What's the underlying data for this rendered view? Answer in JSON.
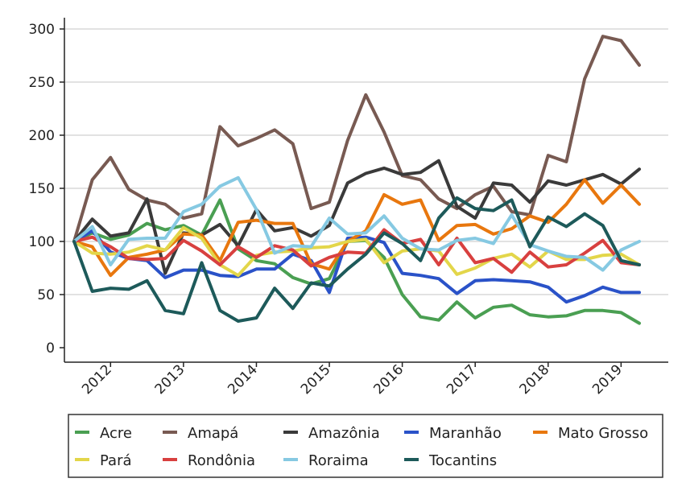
{
  "chart_data": {
    "type": "line",
    "title": "",
    "xlabel": "",
    "ylabel": "",
    "ylim": [
      0,
      300
    ],
    "yticks": [
      0,
      50,
      100,
      150,
      200,
      250,
      300
    ],
    "xlim": [
      2011.5,
      2019.33
    ],
    "xticks": [
      2012,
      2013,
      2014,
      2015,
      2016,
      2017,
      2018,
      2019
    ],
    "xtick_labels": [
      "2012",
      "2013",
      "2014",
      "2015",
      "2016",
      "2017",
      "2018",
      "2019"
    ],
    "grid": "horizontal",
    "legend_position": "bottom",
    "x": [
      2011.5,
      2011.75,
      2012.0,
      2012.25,
      2012.5,
      2012.75,
      2013.0,
      2013.25,
      2013.5,
      2013.75,
      2014.0,
      2014.25,
      2014.5,
      2014.75,
      2015.0,
      2015.25,
      2015.5,
      2015.75,
      2016.0,
      2016.25,
      2016.5,
      2016.75,
      2017.0,
      2017.25,
      2017.5,
      2017.75,
      2018.0,
      2018.25,
      2018.5,
      2018.75,
      2019.0,
      2019.25
    ],
    "series": [
      {
        "name": "Acre",
        "color": "#4a9f52",
        "values": [
          100,
          108,
          102,
          106,
          117,
          111,
          115,
          106,
          139,
          93,
          82,
          79,
          66,
          60,
          65,
          100,
          101,
          85,
          50,
          29,
          26,
          43,
          28,
          38,
          40,
          31,
          29,
          30,
          35,
          35,
          33,
          23
        ]
      },
      {
        "name": "Amapá",
        "color": "#785a52",
        "values": [
          100,
          158,
          179,
          149,
          139,
          135,
          122,
          126,
          208,
          190,
          197,
          205,
          192,
          131,
          137,
          195,
          238,
          203,
          162,
          158,
          140,
          131,
          144,
          152,
          128,
          125,
          181,
          175,
          253,
          293,
          289,
          266
        ]
      },
      {
        "name": "Amazônia",
        "color": "#3a3a3a",
        "values": [
          100,
          121,
          105,
          108,
          140,
          70,
          108,
          106,
          116,
          96,
          130,
          110,
          113,
          105,
          115,
          155,
          164,
          169,
          163,
          165,
          176,
          133,
          122,
          155,
          153,
          137,
          157,
          153,
          158,
          163,
          154,
          168
        ]
      },
      {
        "name": "Maranhão",
        "color": "#2a52c8",
        "values": [
          100,
          110,
          90,
          84,
          82,
          66,
          73,
          73,
          68,
          67,
          74,
          74,
          88,
          82,
          52,
          103,
          104,
          99,
          70,
          68,
          65,
          51,
          63,
          64,
          63,
          62,
          57,
          43,
          49,
          57,
          52,
          52
        ]
      },
      {
        "name": "Mato Grosso",
        "color": "#e8770e",
        "values": [
          100,
          95,
          68,
          85,
          88,
          92,
          107,
          106,
          82,
          118,
          120,
          117,
          117,
          79,
          74,
          100,
          110,
          144,
          135,
          139,
          101,
          115,
          116,
          107,
          112,
          124,
          118,
          135,
          158,
          136,
          153,
          135
        ]
      },
      {
        "name": "Pará",
        "color": "#e3d64a",
        "values": [
          100,
          89,
          88,
          90,
          96,
          92,
          113,
          103,
          78,
          68,
          87,
          90,
          91,
          94,
          95,
          100,
          102,
          80,
          91,
          93,
          91,
          69,
          75,
          84,
          88,
          76,
          91,
          83,
          83,
          87,
          88,
          78
        ]
      },
      {
        "name": "Rondônia",
        "color": "#d8403f",
        "values": [
          100,
          104,
          95,
          84,
          83,
          84,
          101,
          91,
          78,
          95,
          85,
          96,
          92,
          77,
          85,
          90,
          89,
          111,
          98,
          102,
          78,
          103,
          80,
          84,
          71,
          90,
          76,
          78,
          89,
          101,
          80,
          78
        ]
      },
      {
        "name": "Roraima",
        "color": "#86c9e2",
        "values": [
          100,
          114,
          78,
          102,
          103,
          103,
          128,
          135,
          152,
          160,
          130,
          89,
          96,
          95,
          122,
          107,
          108,
          124,
          103,
          93,
          92,
          101,
          103,
          98,
          125,
          97,
          91,
          86,
          85,
          73,
          92,
          100
        ]
      },
      {
        "name": "Tocantins",
        "color": "#1d5a5a",
        "values": [
          100,
          53,
          56,
          55,
          63,
          35,
          32,
          80,
          35,
          25,
          28,
          56,
          37,
          61,
          58,
          74,
          88,
          108,
          98,
          82,
          122,
          141,
          131,
          129,
          139,
          95,
          123,
          114,
          126,
          115,
          82,
          78
        ]
      }
    ]
  }
}
